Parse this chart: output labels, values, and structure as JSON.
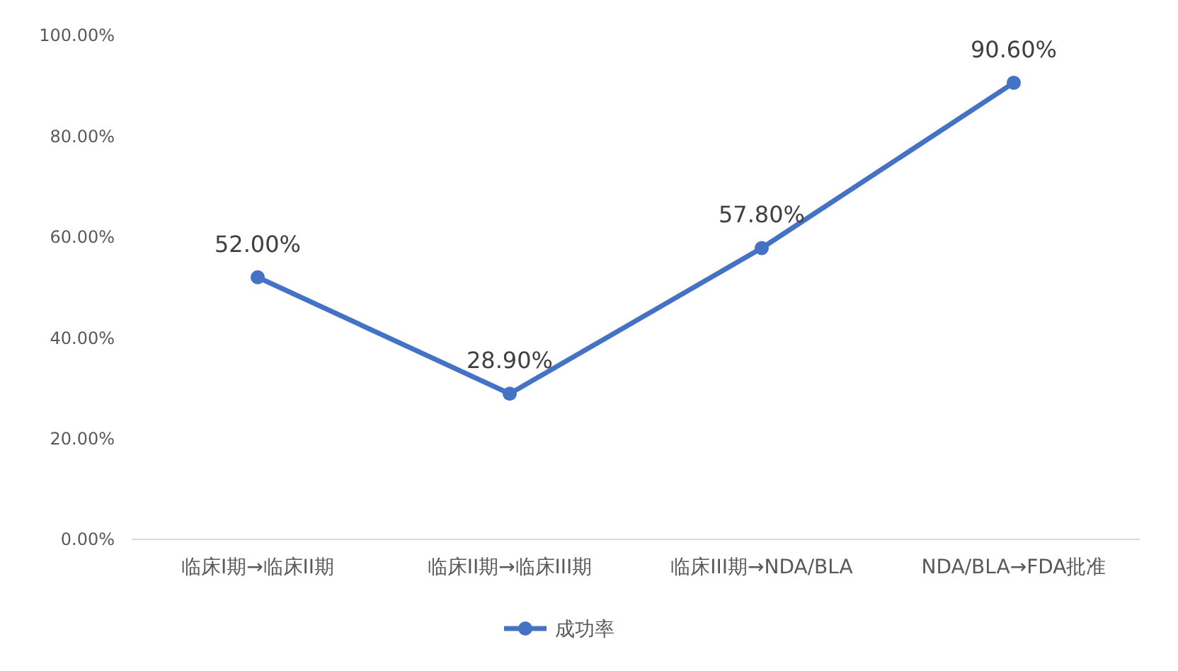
{
  "chart_data": {
    "type": "line",
    "categories": [
      "临床I期→临床II期",
      "临床II期→临床III期",
      "临床III期→NDA/BLA",
      "NDA/BLA→FDA批准"
    ],
    "series": [
      {
        "name": "成功率",
        "color": "#4472c4",
        "values": [
          52.0,
          28.9,
          57.8,
          90.6
        ],
        "value_labels": [
          "52.00%",
          "28.90%",
          "57.80%",
          "90.60%"
        ]
      }
    ],
    "ylim": [
      0,
      100
    ],
    "yticks": [
      {
        "value": 0,
        "label": "0.00%"
      },
      {
        "value": 20,
        "label": "20.00%"
      },
      {
        "value": 40,
        "label": "40.00%"
      },
      {
        "value": 60,
        "label": "60.00%"
      },
      {
        "value": 80,
        "label": "80.00%"
      },
      {
        "value": 100,
        "label": "100.00%"
      }
    ],
    "marker": "circle",
    "legend": "bottom"
  }
}
